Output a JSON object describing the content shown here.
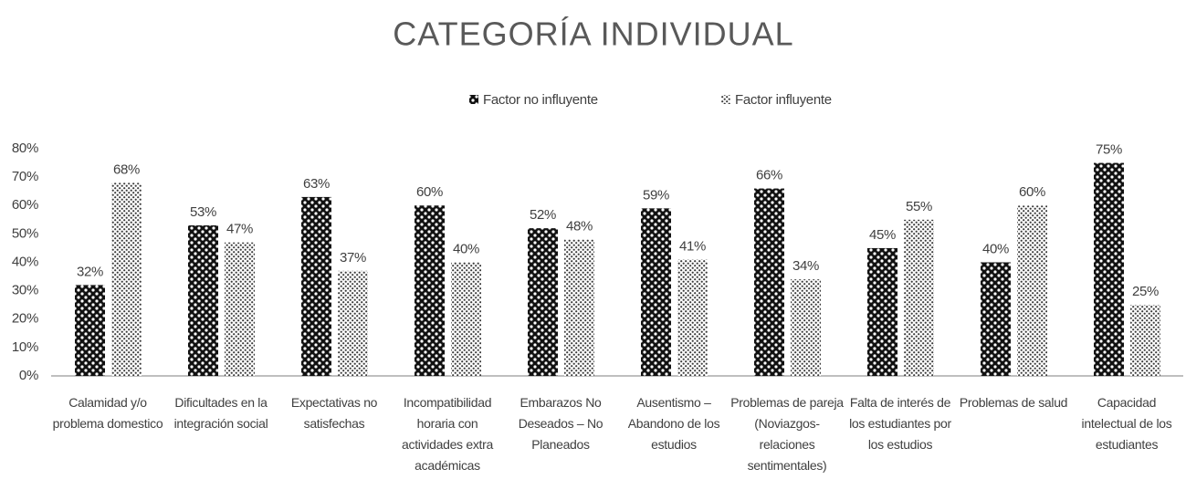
{
  "chart_data": {
    "type": "bar",
    "title": "CATEGORÍA INDIVIDUAL",
    "categories": [
      "Calamidad y/o problema domestico",
      "Dificultades en la integración social",
      "Expectativas no satisfechas",
      "Incompatibilidad horaria con actividades extra académicas",
      "Embarazos No Deseados – No Planeados",
      "Ausentismo – Abandono de los estudios",
      "Problemas de pareja (Noviazgos-relaciones sentimentales)",
      "Falta de interés de los estudiantes por los estudios",
      "Problemas de salud",
      "Capacidad intelectual de los estudiantes"
    ],
    "series": [
      {
        "name": "Factor no influyente",
        "color": "#111111",
        "values": [
          32,
          53,
          63,
          60,
          52,
          59,
          66,
          45,
          40,
          75
        ],
        "value_labels": [
          "32%",
          "53%",
          "63%",
          "60%",
          "52%",
          "59%",
          "66%",
          "45%",
          "40%",
          "75%"
        ]
      },
      {
        "name": "Factor influyente",
        "color": "#3a3a3a",
        "values": [
          68,
          47,
          37,
          40,
          48,
          41,
          34,
          55,
          60,
          25
        ],
        "value_labels": [
          "68%",
          "47%",
          "37%",
          "40%",
          "48%",
          "41%",
          "34%",
          "55%",
          "60%",
          "25%"
        ]
      }
    ],
    "ylim": [
      0,
      80
    ],
    "yticks": [
      {
        "value": 0,
        "label": "0%"
      },
      {
        "value": 10,
        "label": "10%"
      },
      {
        "value": 20,
        "label": "20%"
      },
      {
        "value": 30,
        "label": "30%"
      },
      {
        "value": 40,
        "label": "40%"
      },
      {
        "value": 50,
        "label": "50%"
      },
      {
        "value": 60,
        "label": "60%"
      },
      {
        "value": 70,
        "label": "70%"
      },
      {
        "value": 80,
        "label": "80%"
      }
    ],
    "grid": false,
    "legend": "top"
  }
}
